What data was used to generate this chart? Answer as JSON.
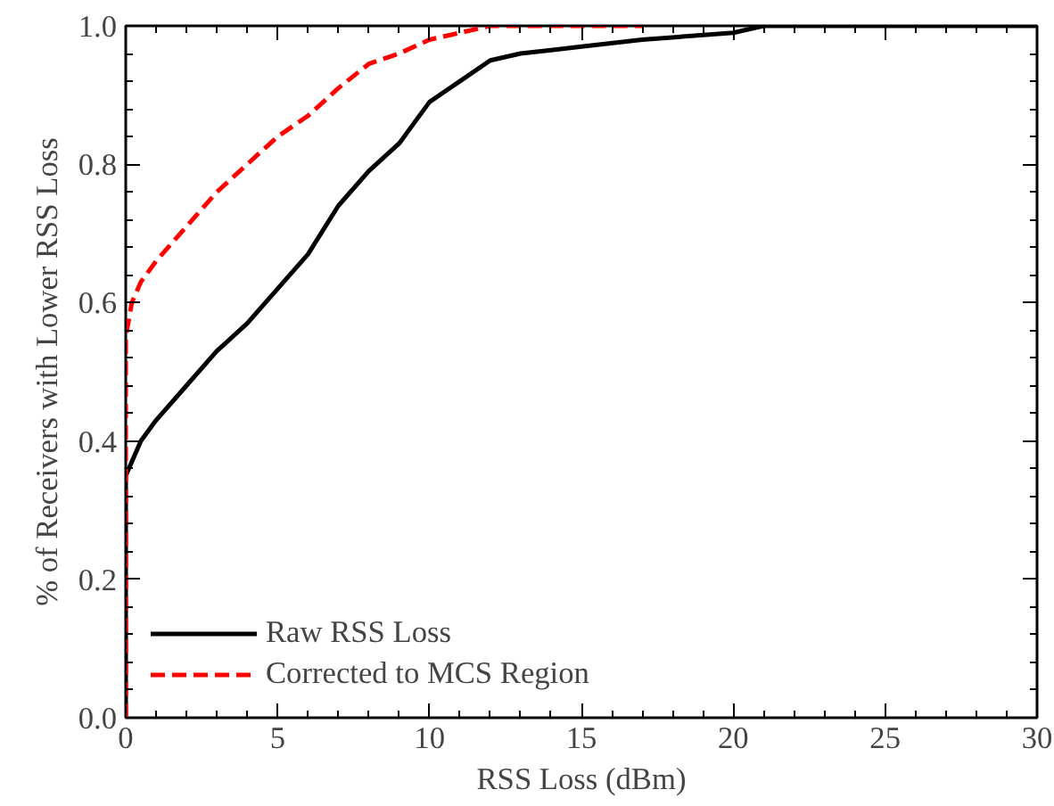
{
  "chart_data": {
    "type": "line",
    "xlabel": "RSS Loss (dBm)",
    "ylabel": "% of Receivers with Lower RSS Loss",
    "xlim": [
      0,
      30
    ],
    "ylim": [
      0,
      1.0
    ],
    "xticks": [
      0,
      5,
      10,
      15,
      20,
      25,
      30
    ],
    "yticks": [
      {
        "value": 0,
        "label": "0.0"
      },
      0.2,
      0.4,
      0.6,
      0.8,
      {
        "value": 1,
        "label": "1.0"
      }
    ],
    "grid": false,
    "legend": "bottom left",
    "marker": "none",
    "series": [
      {
        "name": "Raw RSS Loss",
        "color": "#000000",
        "line_style": "solid",
        "x": [
          0,
          0,
          0.5,
          1,
          2,
          3,
          4,
          5,
          6,
          7,
          8,
          9,
          9.5,
          10,
          11,
          12,
          13,
          14,
          15,
          17,
          20,
          21,
          30
        ],
        "values": [
          0,
          0.35,
          0.4,
          0.43,
          0.48,
          0.53,
          0.57,
          0.62,
          0.67,
          0.74,
          0.79,
          0.83,
          0.86,
          0.89,
          0.92,
          0.95,
          0.96,
          0.965,
          0.97,
          0.98,
          0.99,
          1.0,
          1.0
        ]
      },
      {
        "name": "Corrected to MCS Region",
        "color": "#ff0000",
        "line_style": "dashed",
        "x": [
          0,
          0,
          0.2,
          0.5,
          1,
          2,
          3,
          4,
          5,
          6,
          7,
          8,
          9,
          10,
          11,
          12,
          17
        ],
        "values": [
          0,
          0.55,
          0.6,
          0.63,
          0.66,
          0.71,
          0.76,
          0.8,
          0.84,
          0.87,
          0.91,
          0.945,
          0.96,
          0.98,
          0.99,
          1.0,
          1.0
        ]
      }
    ]
  }
}
